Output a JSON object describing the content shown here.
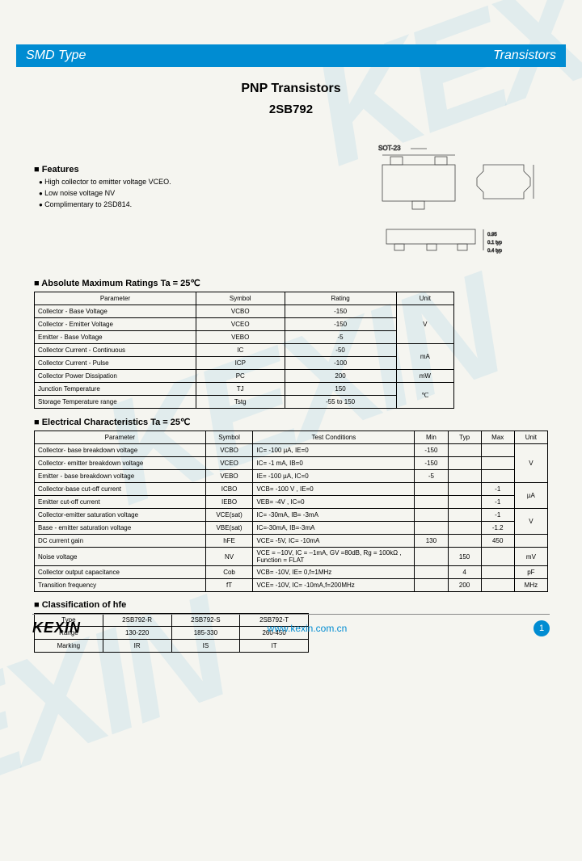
{
  "watermark_text": "KEXIN",
  "header": {
    "left": "SMD Type",
    "right": "Transistors"
  },
  "title": "PNP  Transistors",
  "subtitle": "2SB792",
  "features": {
    "heading": "Features",
    "items": [
      "High collector to emitter voltage VCEO.",
      "Low noise voltage NV",
      "Complimentary to 2SD814."
    ]
  },
  "package_label_top": "SOT-23",
  "abs_ratings": {
    "heading": "Absolute Maximum Ratings Ta = 25℃",
    "columns": [
      "Parameter",
      "Symbol",
      "Rating",
      "Unit"
    ],
    "rows": [
      [
        "Collector - Base Voltage",
        "VCBO",
        "-150",
        "V",
        3
      ],
      [
        "Collector - Emitter Voltage",
        "VCEO",
        "-150",
        "",
        0
      ],
      [
        "Emitter - Base Voltage",
        "VEBO",
        "-5",
        "",
        0
      ],
      [
        "Collector Current  - Continuous",
        "IC",
        "-50",
        "mA",
        2
      ],
      [
        "Collector Current  - Pulse",
        "ICP",
        "-100",
        "",
        0
      ],
      [
        "Collector Power Dissipation",
        "PC",
        "200",
        "mW",
        1
      ],
      [
        "Junction Temperature",
        "TJ",
        "150",
        "℃",
        2
      ],
      [
        "Storage Temperature range",
        "Tstg",
        "-55 to 150",
        "",
        0
      ]
    ]
  },
  "elec_chars": {
    "heading": "Electrical Characteristics Ta = 25℃",
    "columns": [
      "Parameter",
      "Symbol",
      "Test Conditions",
      "Min",
      "Typ",
      "Max",
      "Unit"
    ],
    "rows": [
      [
        "Collector- base breakdown voltage",
        "VCBO",
        "IC= -100 µA,   IE=0",
        "-150",
        "",
        "",
        "V",
        3
      ],
      [
        "Collector- emitter breakdown voltage",
        "VCEO",
        "IC= -1 mA,   IB=0",
        "-150",
        "",
        "",
        "",
        0
      ],
      [
        "Emitter - base breakdown voltage",
        "VEBO",
        "IE= -100 µA,  IC=0",
        "-5",
        "",
        "",
        "",
        0
      ],
      [
        "Collector-base cut-off current",
        "ICBO",
        "VCB= -100 V , IE=0",
        "",
        "",
        "-1",
        "µA",
        2
      ],
      [
        "Emitter cut-off current",
        "IEBO",
        "VEB= -4V , IC=0",
        "",
        "",
        "-1",
        "",
        0
      ],
      [
        "Collector-emitter saturation voltage",
        "VCE(sat)",
        "IC= -30mA, IB= -3mA",
        "",
        "",
        "-1",
        "V",
        2
      ],
      [
        "Base - emitter saturation voltage",
        "VBE(sat)",
        "IC=-30mA, IB=-3mA",
        "",
        "",
        "-1.2",
        "",
        0
      ],
      [
        "DC current gain",
        "hFE",
        "VCE= -5V, IC= -10mA",
        "130",
        "",
        "450",
        "",
        1
      ],
      [
        "Noise voltage",
        "NV",
        "VCE = –10V, IC = –1mA, GV =80dB, Rg = 100kΩ , Function = FLAT",
        "",
        "150",
        "",
        "mV",
        1
      ],
      [
        "Collector output capacitance",
        "Cob",
        "VCB= -10V, IE=  0,f=1MHz",
        "",
        "4",
        "",
        "pF",
        1
      ],
      [
        "Transition frequency",
        "fT",
        "VCE= -10V, IC=  -10mA,f=200MHz",
        "",
        "200",
        "",
        "MHz",
        1
      ]
    ]
  },
  "classification": {
    "heading": "Classification of hfe",
    "rows": [
      [
        "Type",
        "2SB792-R",
        "2SB792-S",
        "2SB792-T"
      ],
      [
        "Range",
        "130-220",
        "185-330",
        "260-450"
      ],
      [
        "Marking",
        "IR",
        "IS",
        "IT"
      ]
    ]
  },
  "footer": {
    "logo": "KEXIN",
    "url": "www.kexin.com.cn",
    "page": "1"
  },
  "colors": {
    "brand": "#008cd2",
    "page_bg": "#f5f5f0"
  }
}
